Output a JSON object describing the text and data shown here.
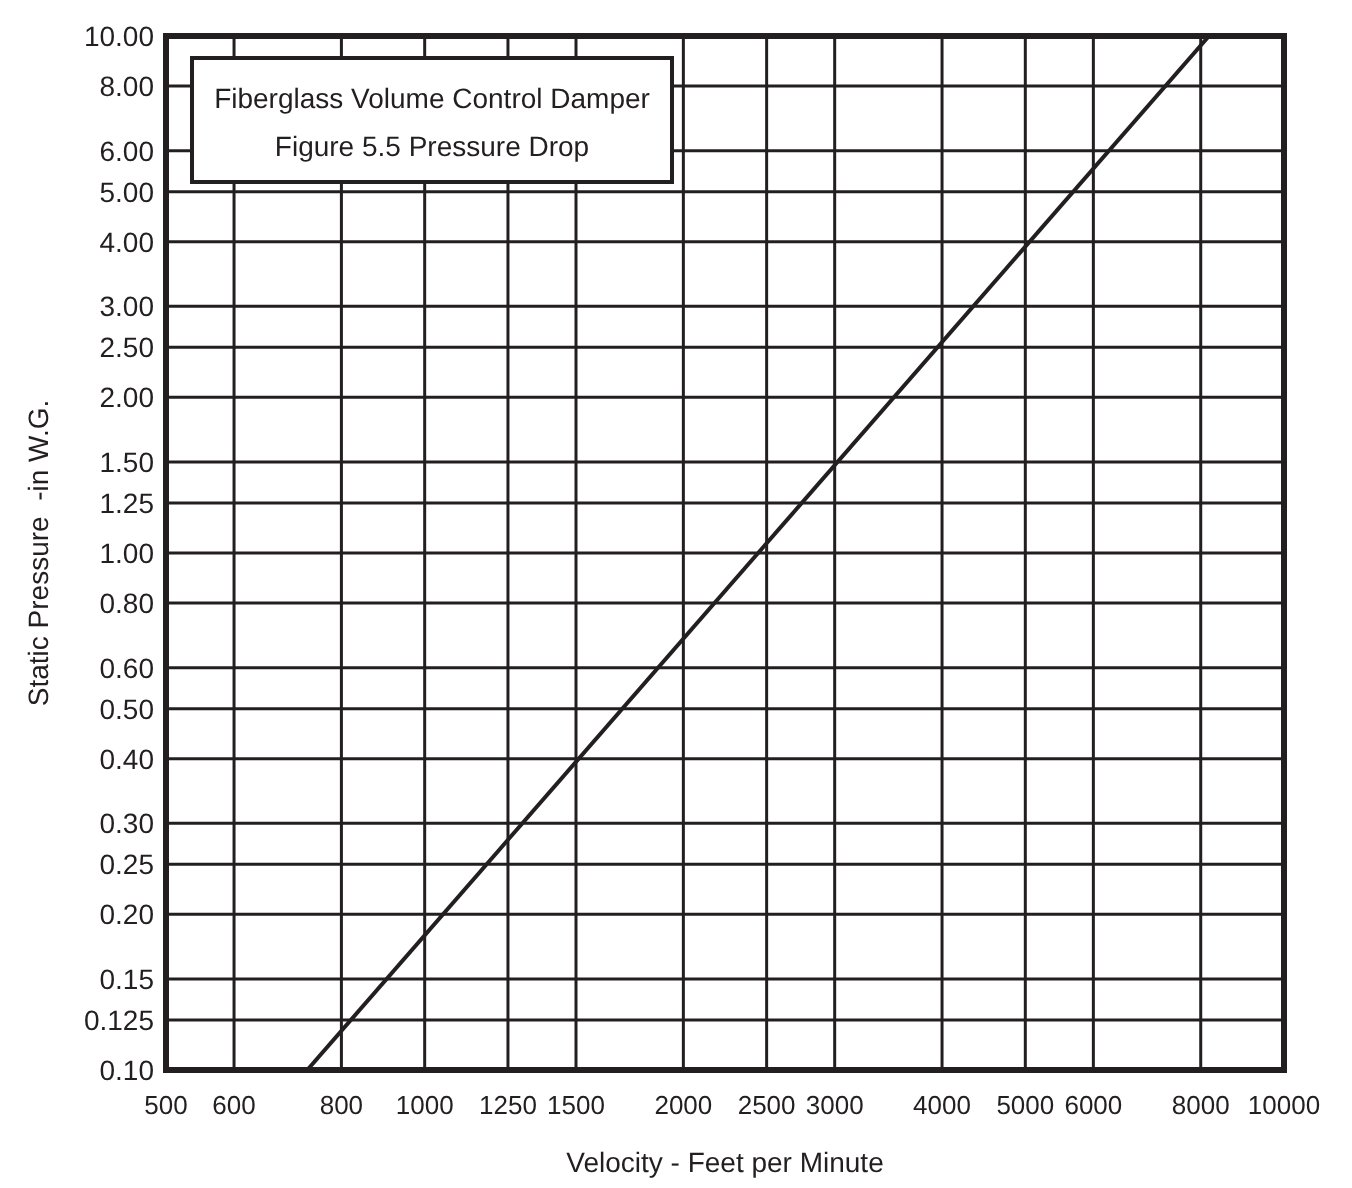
{
  "chart_data": {
    "type": "line",
    "title": "Fiberglass Volume Control Damper",
    "subtitle": "Figure 5.5 Pressure Drop",
    "xlabel": "Velocity - Feet per Minute",
    "ylabel": "Static Pressure  -in W.G.",
    "log": "xy",
    "grid": true,
    "x": [
      730,
      8180
    ],
    "series": [
      {
        "color": "#231f20",
        "values": [
          0.1,
          10
        ]
      }
    ],
    "xlim": [
      500,
      10000
    ],
    "ylim": [
      0.1,
      10
    ],
    "xticks": [
      500,
      600,
      800,
      1000,
      1250,
      1500,
      2000,
      2500,
      3000,
      4000,
      5000,
      6000,
      8000,
      10000
    ],
    "yticks": [
      {
        "value": 0.1,
        "label": "0.10"
      },
      0.125,
      0.15,
      {
        "value": 0.2,
        "label": "0.20"
      },
      0.25,
      {
        "value": 0.3,
        "label": "0.30"
      },
      {
        "value": 0.4,
        "label": "0.40"
      },
      {
        "value": 0.5,
        "label": "0.50"
      },
      {
        "value": 0.6,
        "label": "0.60"
      },
      {
        "value": 0.8,
        "label": "0.80"
      },
      {
        "value": 1,
        "label": "1.00"
      },
      1.25,
      {
        "value": 1.5,
        "label": "1.50"
      },
      {
        "value": 2,
        "label": "2.00"
      },
      {
        "value": 2.5,
        "label": "2.50"
      },
      {
        "value": 3,
        "label": "3.00"
      },
      {
        "value": 4,
        "label": "4.00"
      },
      {
        "value": 5,
        "label": "5.00"
      },
      {
        "value": 6,
        "label": "6.00"
      },
      {
        "value": 8,
        "label": "8.00"
      },
      {
        "value": 10,
        "label": "10.00"
      }
    ]
  }
}
